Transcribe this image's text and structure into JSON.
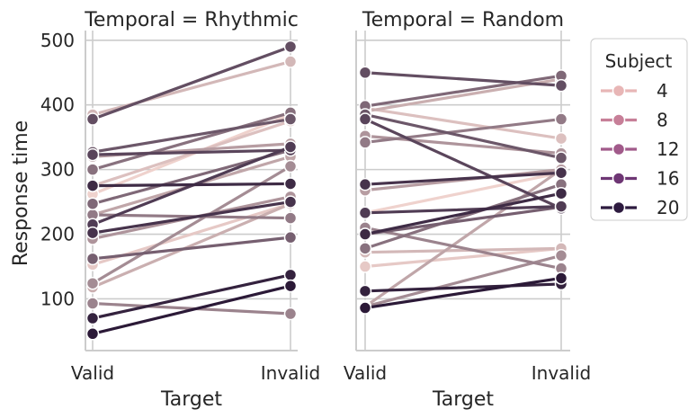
{
  "chart_data": {
    "type": "line",
    "ylabel": "Response time",
    "yticks": [
      100,
      200,
      300,
      400,
      500
    ],
    "ylim": [
      20,
      515
    ],
    "grid": true,
    "x_categories": [
      "Valid",
      "Invalid"
    ],
    "legend": {
      "title": "Subject",
      "placement": "right",
      "entries": [
        {
          "label": "4",
          "color": "#e8b6b6"
        },
        {
          "label": "8",
          "color": "#c77f98"
        },
        {
          "label": "12",
          "color": "#a15a8a"
        },
        {
          "label": "16",
          "color": "#6e3674"
        },
        {
          "label": "20",
          "color": "#2d1a3f"
        }
      ]
    },
    "hue_color_range": {
      "low": "#efd2cd",
      "high": "#2b1937"
    },
    "panels": [
      {
        "title": "Temporal = Rhythmic",
        "xlabel": "Target",
        "series": [
          {
            "subject": 1,
            "values": [
              262,
              385
            ]
          },
          {
            "subject": 2,
            "values": [
              153,
              247
            ]
          },
          {
            "subject": 3,
            "values": [
              275,
              375
            ]
          },
          {
            "subject": 4,
            "values": [
              385,
              467
            ]
          },
          {
            "subject": 5,
            "values": [
              118,
              247
            ]
          },
          {
            "subject": 6,
            "values": [
              230,
              320
            ]
          },
          {
            "subject": 7,
            "values": [
              320,
              340
            ]
          },
          {
            "subject": 8,
            "values": [
              193,
              258
            ]
          },
          {
            "subject": 9,
            "values": [
              124,
              305
            ]
          },
          {
            "subject": 10,
            "values": [
              93,
              77
            ]
          },
          {
            "subject": 11,
            "values": [
              230,
              225
            ]
          },
          {
            "subject": 12,
            "values": [
              300,
              388
            ]
          },
          {
            "subject": 13,
            "values": [
              247,
              330
            ]
          },
          {
            "subject": 14,
            "values": [
              162,
              195
            ]
          },
          {
            "subject": 15,
            "values": [
              327,
              378
            ]
          },
          {
            "subject": 16,
            "values": [
              378,
              490
            ]
          },
          {
            "subject": 17,
            "values": [
              323,
              330
            ]
          },
          {
            "subject": 18,
            "values": [
              215,
              335
            ]
          },
          {
            "subject": 19,
            "values": [
              202,
              250
            ]
          },
          {
            "subject": 20,
            "values": [
              275,
              278
            ]
          },
          {
            "subject": 21,
            "values": [
              70,
              137
            ]
          },
          {
            "subject": 22,
            "values": [
              46,
              120
            ]
          }
        ]
      },
      {
        "title": "Temporal = Random",
        "xlabel": "Target",
        "series": [
          {
            "subject": 1,
            "values": [
              233,
              295
            ]
          },
          {
            "subject": 2,
            "values": [
              150,
              178
            ]
          },
          {
            "subject": 3,
            "values": [
              395,
              348
            ]
          },
          {
            "subject": 4,
            "values": [
              172,
              178
            ]
          },
          {
            "subject": 5,
            "values": [
              390,
              440
            ]
          },
          {
            "subject": 6,
            "values": [
              88,
              300
            ]
          },
          {
            "subject": 7,
            "values": [
              268,
              300
            ]
          },
          {
            "subject": 8,
            "values": [
              352,
              325
            ]
          },
          {
            "subject": 9,
            "values": [
              88,
              167
            ]
          },
          {
            "subject": 10,
            "values": [
              210,
              147
            ]
          },
          {
            "subject": 11,
            "values": [
              342,
              378
            ]
          },
          {
            "subject": 12,
            "values": [
              178,
              277
            ]
          },
          {
            "subject": 13,
            "values": [
              398,
              445
            ]
          },
          {
            "subject": 14,
            "values": [
              200,
              242
            ]
          },
          {
            "subject": 15,
            "values": [
              385,
              318
            ]
          },
          {
            "subject": 16,
            "values": [
              450,
              430
            ]
          },
          {
            "subject": 17,
            "values": [
              378,
              240
            ]
          },
          {
            "subject": 18,
            "values": [
              233,
              243
            ]
          },
          {
            "subject": 19,
            "values": [
              277,
              295
            ]
          },
          {
            "subject": 20,
            "values": [
              200,
              263
            ]
          },
          {
            "subject": 21,
            "values": [
              112,
              123
            ]
          },
          {
            "subject": 22,
            "values": [
              86,
              132
            ]
          }
        ]
      }
    ]
  }
}
